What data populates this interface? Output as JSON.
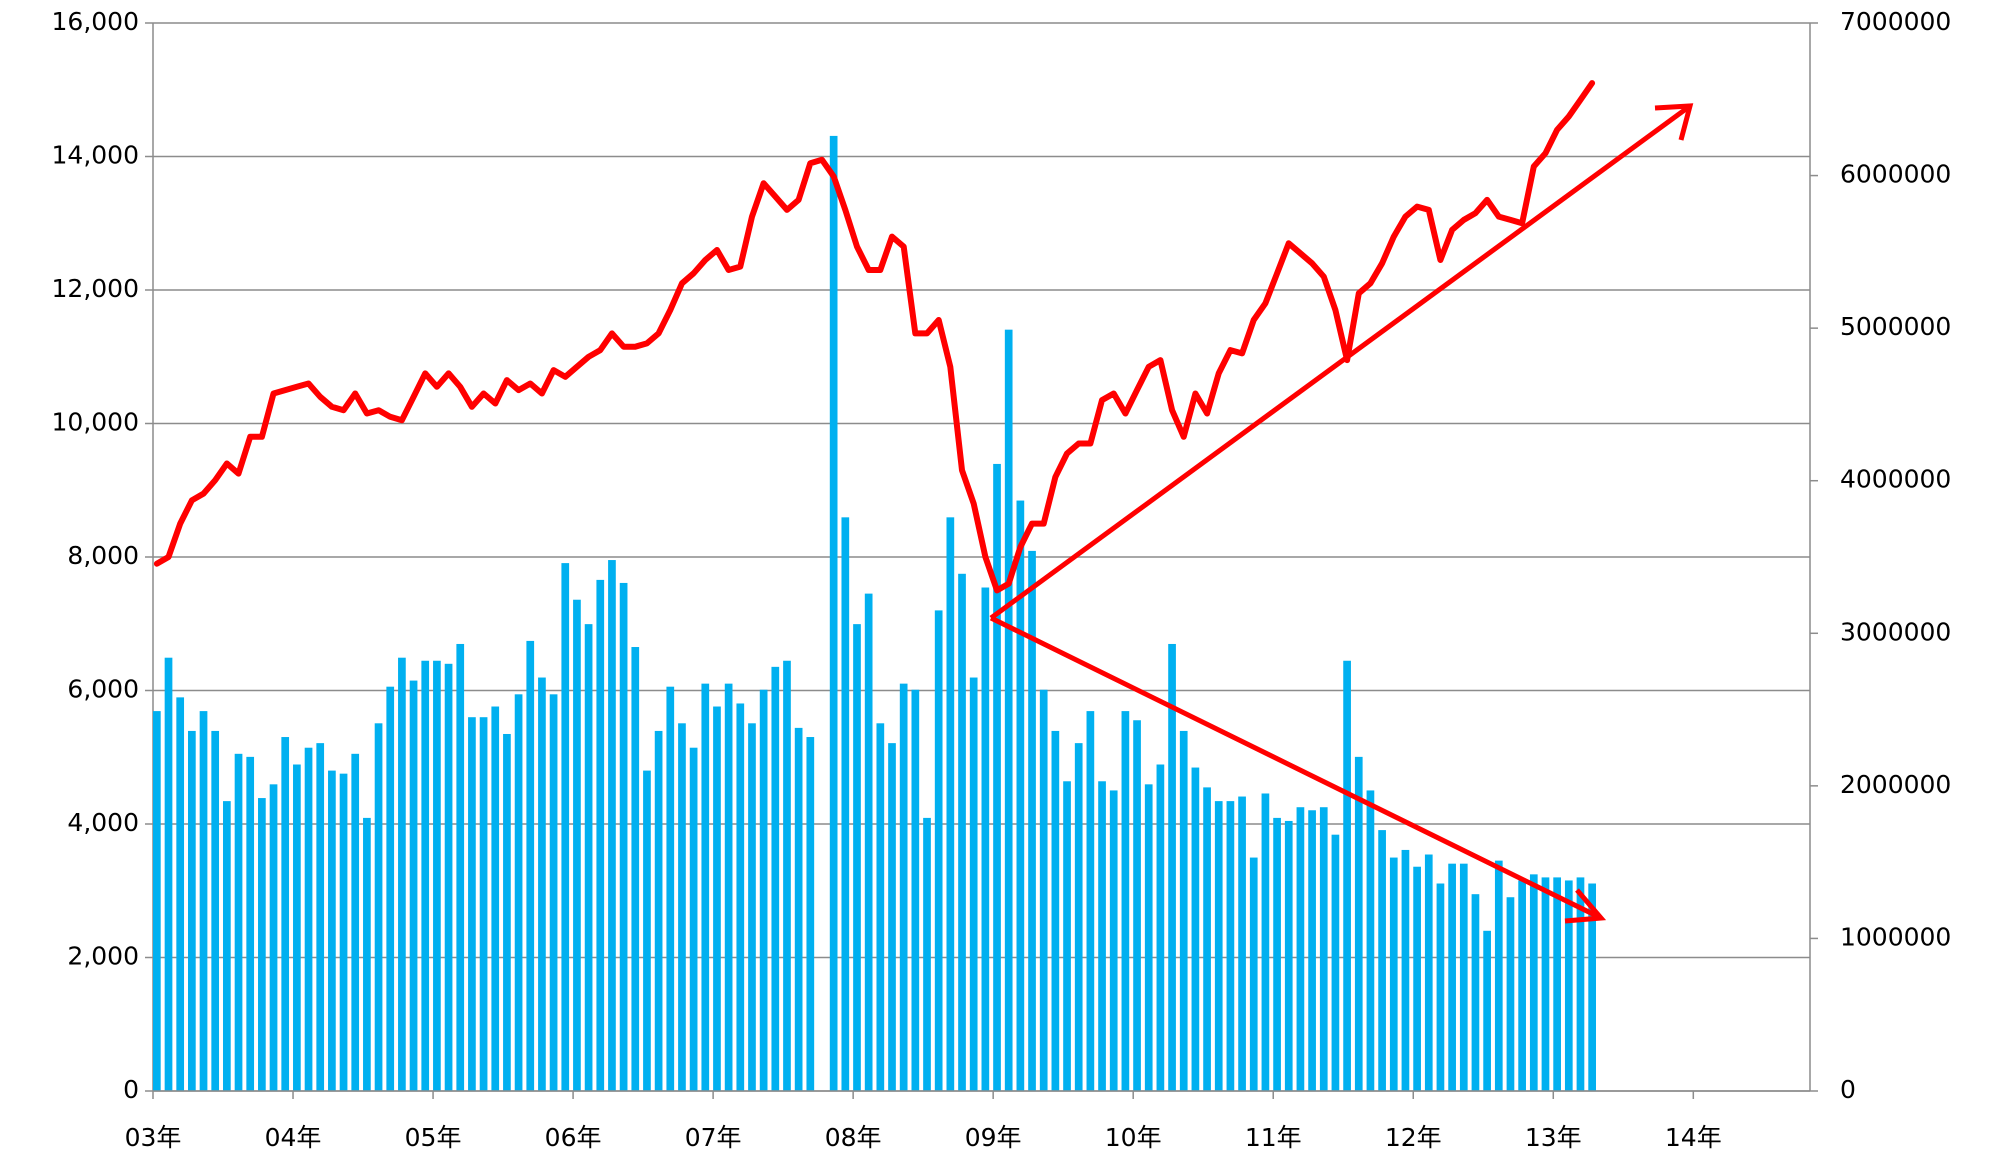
{
  "chart_data": {
    "type": "combo",
    "categories": [
      "03年",
      null,
      null,
      null,
      null,
      null,
      null,
      null,
      null,
      null,
      null,
      null,
      "04年",
      null,
      null,
      null,
      null,
      null,
      null,
      null,
      null,
      null,
      null,
      null,
      "05年",
      null,
      null,
      null,
      null,
      null,
      null,
      null,
      null,
      null,
      null,
      null,
      "06年",
      null,
      null,
      null,
      null,
      null,
      null,
      null,
      null,
      null,
      null,
      null,
      "07年",
      null,
      null,
      null,
      null,
      null,
      null,
      null,
      null,
      null,
      null,
      null,
      "08年",
      null,
      null,
      null,
      null,
      null,
      null,
      null,
      null,
      null,
      null,
      null,
      "09年",
      null,
      null,
      null,
      null,
      null,
      null,
      null,
      null,
      null,
      null,
      null,
      "10年",
      null,
      null,
      null,
      null,
      null,
      null,
      null,
      null,
      null,
      null,
      null,
      "11年",
      null,
      null,
      null,
      null,
      null,
      null,
      null,
      null,
      null,
      null,
      null,
      "12年",
      null,
      null,
      null,
      null,
      null,
      null,
      null,
      null,
      null,
      null,
      null,
      "13年",
      null,
      null,
      null,
      null,
      null,
      null,
      null,
      null,
      null,
      null,
      null,
      "14年",
      null,
      null,
      null,
      null,
      null,
      null,
      null,
      null,
      null,
      null
    ],
    "series": [
      {
        "type": "bar",
        "axis": "y2",
        "color": "#00b0f0",
        "values": [
          2490000,
          2840000,
          2580000,
          2360000,
          2490000,
          2360000,
          1900000,
          2210000,
          2190000,
          1920000,
          2010000,
          2320000,
          2140000,
          2250000,
          2280000,
          2100000,
          2080000,
          2210000,
          1790000,
          2410000,
          2650000,
          2840000,
          2690000,
          2820000,
          2820000,
          2800000,
          2930000,
          2450000,
          2450000,
          2520000,
          2340000,
          2600000,
          2950000,
          2710000,
          2600000,
          3460000,
          3220000,
          3060000,
          3350000,
          3480000,
          3330000,
          2910000,
          2100000,
          2360000,
          2650000,
          2410000,
          2250000,
          2670000,
          2520000,
          2670000,
          2540000,
          2410000,
          2630000,
          2780000,
          2820000,
          2380000,
          2320000,
          null,
          6260000,
          3760000,
          3060000,
          3260000,
          2410000,
          2280000,
          2670000,
          2630000,
          1790000,
          3150000,
          3760000,
          3390000,
          2710000,
          3300000,
          4110000,
          4990000,
          3870000,
          3540000,
          2630000,
          2360000,
          2030000,
          2280000,
          2490000,
          2030000,
          1970000,
          2490000,
          2430000,
          2010000,
          2140000,
          2930000,
          2360000,
          2120000,
          1990000,
          1900000,
          1900000,
          1930000,
          1530000,
          1950000,
          1790000,
          1770000,
          1860000,
          1840000,
          1860000,
          1680000,
          2820000,
          2190000,
          1970000,
          1710000,
          1530000,
          1580000,
          1470000,
          1550000,
          1360000,
          1490000,
          1490000,
          1290000,
          1050000,
          1510000,
          1270000,
          1380000,
          1420000,
          1400000,
          1400000,
          1380000,
          1400000,
          1360000,
          null,
          null,
          null,
          null,
          null,
          null,
          null,
          null,
          null,
          null,
          null,
          null,
          null,
          null,
          null,
          null,
          null,
          null,
          null
        ]
      },
      {
        "type": "line",
        "color": "#ff0000",
        "values": [
          7900,
          8000,
          8500,
          8850,
          8950,
          9150,
          9400,
          9250,
          9800,
          9800,
          10450,
          10500,
          10550,
          10600,
          10400,
          10250,
          10200,
          10450,
          10150,
          10200,
          10100,
          10050,
          10400,
          10750,
          10550,
          10750,
          10550,
          10250,
          10450,
          10300,
          10650,
          10500,
          10600,
          10450,
          10800,
          10700,
          10850,
          11000,
          11100,
          11350,
          11150,
          11150,
          11200,
          11350,
          11700,
          12100,
          12250,
          12450,
          12600,
          12300,
          12350,
          13100,
          13600,
          13400,
          13200,
          13350,
          13900,
          13950,
          13700,
          13200,
          12650,
          12300,
          12300,
          12800,
          12650,
          11350,
          11350,
          11550,
          10850,
          9300,
          8800,
          8000,
          7500,
          7600,
          8150,
          8500,
          8500,
          9200,
          9550,
          9700,
          9700,
          10350,
          10450,
          10150,
          10500,
          10850,
          10950,
          10200,
          9800,
          10450,
          10150,
          10750,
          11100,
          11050,
          11550,
          11800,
          12250,
          12700,
          12550,
          12400,
          12200,
          11700,
          10950,
          11950,
          12100,
          12400,
          12800,
          13100,
          13250,
          13200,
          12450,
          12900,
          13050,
          13150,
          13350,
          13100,
          13050,
          13000,
          13850,
          14050,
          14400,
          14600,
          14850,
          15100,
          null,
          null,
          null,
          null,
          null,
          null,
          null,
          null,
          null,
          null,
          null,
          null,
          null,
          null,
          null,
          null,
          null,
          null,
          null
        ]
      }
    ],
    "ylim": [
      0,
      16000
    ],
    "yticks": [
      0,
      {
        "value": 2000,
        "label": "2,000"
      },
      {
        "value": 4000,
        "label": "4,000"
      },
      {
        "value": 6000,
        "label": "6,000"
      },
      {
        "value": 8000,
        "label": "8,000"
      },
      {
        "value": 10000,
        "label": "10,000"
      },
      {
        "value": 12000,
        "label": "12,000"
      },
      {
        "value": 14000,
        "label": "14,000"
      },
      {
        "value": 16000,
        "label": "16,000"
      }
    ],
    "y2lim": [
      0,
      7000000
    ],
    "y2ticks": [
      0,
      1000000,
      2000000,
      3000000,
      4000000,
      5000000,
      6000000,
      7000000
    ],
    "grid": true
  }
}
